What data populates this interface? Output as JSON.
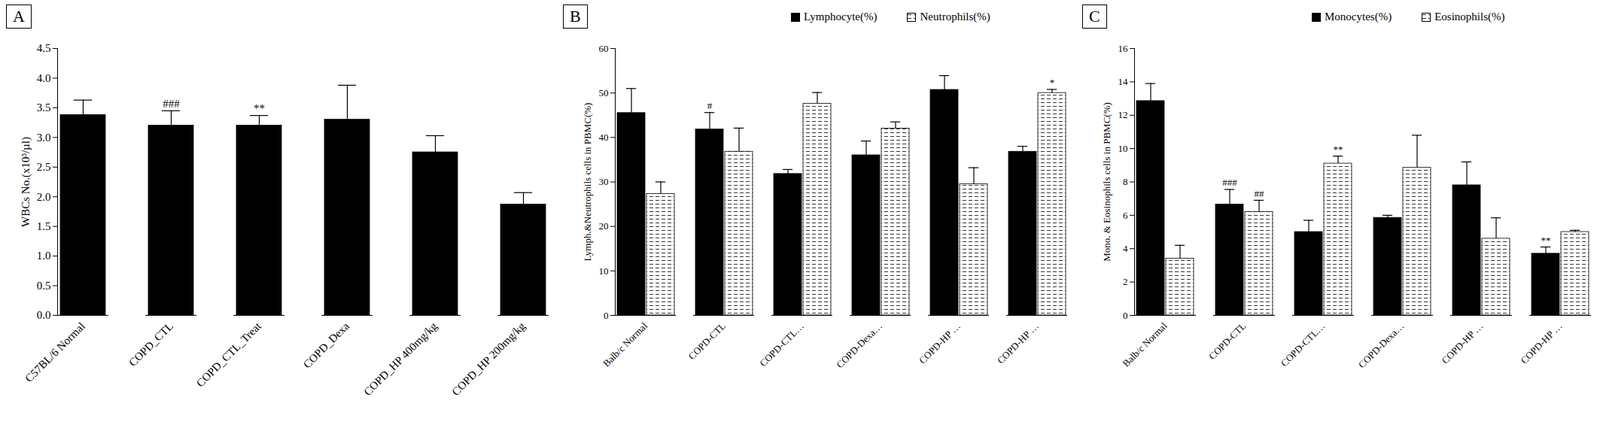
{
  "chart_data": [
    {
      "type": "bar",
      "title": "A",
      "y_label": "WBCs No.(x10³/µl)",
      "categories": [
        "C57BL/6 Normal",
        "COPD_CTL",
        "COPD_CTL_Treat",
        "COPD_Dexa",
        "COPD_HP 400mg/kg",
        "COPD_HP 200mg/kg"
      ],
      "values": [
        3.38,
        3.2,
        3.2,
        3.3,
        2.75,
        1.87
      ],
      "errors": [
        0.25,
        0.25,
        0.17,
        0.58,
        0.28,
        0.2
      ],
      "annotations": [
        null,
        "###",
        "**",
        null,
        null,
        null
      ],
      "color": "#000000",
      "ylim": [
        0,
        4.5
      ],
      "yticks": [
        {
          "value": 0,
          "label": "0.0"
        },
        {
          "value": 0.5,
          "label": "0.5"
        },
        {
          "value": 1,
          "label": "1.0"
        },
        {
          "value": 1.5,
          "label": "1.5"
        },
        {
          "value": 2,
          "label": "2.0"
        },
        {
          "value": 2.5,
          "label": "2.5"
        },
        {
          "value": 3,
          "label": "3.0"
        },
        {
          "value": 3.5,
          "label": "3.5"
        },
        {
          "value": 4,
          "label": "4.0"
        },
        {
          "value": 4.5,
          "label": "4.5"
        }
      ]
    },
    {
      "type": "bar",
      "title": "B",
      "y_label": "Lymph.&Neutrophils cells in PBMC(%)",
      "categories": [
        "Balb/c Normal",
        "COPD-CTL",
        "COPD-CTL…",
        "COPD-Dexa…",
        "COPD-HP …",
        "COPD-HP …"
      ],
      "series": [
        {
          "name": "Lymphocyte(%)",
          "color": "#000000",
          "values": [
            45.5,
            41.8,
            31.8,
            36,
            50.7,
            36.8
          ],
          "errors": [
            5.5,
            3.8,
            1,
            3.2,
            3.2,
            1.2
          ],
          "annotations": [
            null,
            "#",
            null,
            null,
            null,
            null
          ]
        },
        {
          "name": "Neutrophils(%)",
          "color": "#ffffff",
          "values": [
            27.3,
            36.8,
            47.6,
            42,
            29.5,
            50
          ],
          "errors": [
            2.7,
            5.3,
            2.5,
            1.5,
            3.7,
            0.8
          ],
          "annotations": [
            null,
            null,
            null,
            null,
            null,
            "*"
          ]
        }
      ],
      "legend": "top",
      "ylim": [
        0,
        60
      ],
      "yticks": [
        0,
        10,
        20,
        30,
        40,
        50,
        60
      ]
    },
    {
      "type": "bar",
      "title": "C",
      "y_label": "Mono. & Eosinophils cells in PBMC(%)",
      "categories": [
        "Balb/c Normal",
        "COPD-CTL",
        "COPD-CTL…",
        "COPD-Dexa…",
        "COPD-HP …",
        "COPD-HP …"
      ],
      "series": [
        {
          "name": "Monocytes(%)",
          "color": "#000000",
          "values": [
            12.85,
            6.65,
            5,
            5.85,
            7.8,
            3.7
          ],
          "errors": [
            1.05,
            0.9,
            0.7,
            0.15,
            1.4,
            0.4
          ],
          "annotations": [
            null,
            "###",
            null,
            null,
            null,
            "**"
          ]
        },
        {
          "name": "Eosinophils(%)",
          "color": "#ffffff",
          "values": [
            3.4,
            6.2,
            9.1,
            8.85,
            4.6,
            5.0
          ],
          "errors": [
            0.8,
            0.7,
            0.45,
            1.95,
            1.25,
            0.1
          ],
          "annotations": [
            null,
            "##",
            "**",
            null,
            null,
            null
          ]
        }
      ],
      "legend": "top",
      "ylim": [
        0,
        16
      ],
      "yticks": [
        0,
        2,
        4,
        6,
        8,
        10,
        12,
        14,
        16
      ]
    }
  ]
}
